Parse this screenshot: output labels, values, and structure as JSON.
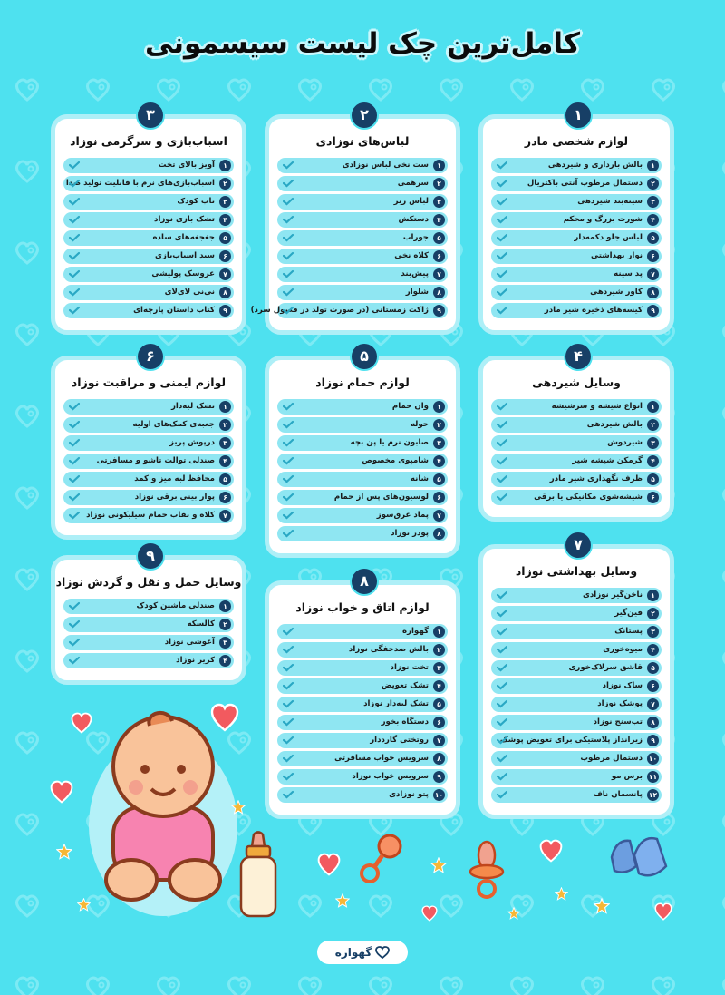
{
  "title": "کامل‌ترین چک لیست سیسمونی",
  "brand": {
    "name": "گهواره"
  },
  "colors": {
    "background": "#4ee1ef",
    "badge": "#173f66",
    "row": "#8fe6f2",
    "check": "#2aa8c4",
    "heart": "#f25a5f",
    "star": "#f6b736"
  },
  "cards": [
    {
      "num": "۱",
      "title": "لوازم شخصی مادر",
      "items": [
        {
          "n": "۱",
          "t": "بالش بارداری و شیردهی"
        },
        {
          "n": "۲",
          "t": "دستمال مرطوب آنتی باکتریال"
        },
        {
          "n": "۳",
          "t": "سینه‌بند شیردهی"
        },
        {
          "n": "۴",
          "t": "شورت بزرگ و محکم"
        },
        {
          "n": "۵",
          "t": "لباس جلو دکمه‌دار"
        },
        {
          "n": "۶",
          "t": "نوار بهداشتی"
        },
        {
          "n": "۷",
          "t": "پد سینه"
        },
        {
          "n": "۸",
          "t": "کاور شیردهی"
        },
        {
          "n": "۹",
          "t": "کیسه‌های ذخیره شیر مادر"
        }
      ]
    },
    {
      "num": "۲",
      "title": "لباس‌های نوزادی",
      "items": [
        {
          "n": "۱",
          "t": "ست نخی لباس نوزادی"
        },
        {
          "n": "۲",
          "t": "سرهمی"
        },
        {
          "n": "۳",
          "t": "لباس زیر"
        },
        {
          "n": "۴",
          "t": "دستکش"
        },
        {
          "n": "۵",
          "t": "جوراب"
        },
        {
          "n": "۶",
          "t": "کلاه نخی"
        },
        {
          "n": "۷",
          "t": "پیش‌بند"
        },
        {
          "n": "۸",
          "t": "شلوار"
        },
        {
          "n": "۹",
          "t": "ژاکت زمستانی (در صورت تولد در فصول سرد)"
        }
      ]
    },
    {
      "num": "۳",
      "title": "اسباب‌بازی و سرگرمی نوزاد",
      "items": [
        {
          "n": "۱",
          "t": "آویز بالای تخت"
        },
        {
          "n": "۲",
          "t": "اسباب‌بازی‌های نرم با قابلیت تولید صدا"
        },
        {
          "n": "۳",
          "t": "تاب کودک"
        },
        {
          "n": "۴",
          "t": "تشک بازی نوزاد"
        },
        {
          "n": "۵",
          "t": "جغجغه‌های ساده"
        },
        {
          "n": "۶",
          "t": "سبد اسباب‌بازی"
        },
        {
          "n": "۷",
          "t": "عروسک پولیشی"
        },
        {
          "n": "۸",
          "t": "نی‌نی لای‌لای"
        },
        {
          "n": "۹",
          "t": "کتاب داستان پارچه‌ای"
        }
      ]
    },
    {
      "num": "۴",
      "title": "وسایل شیردهی",
      "items": [
        {
          "n": "۱",
          "t": "انواع شیشه و سرشیشه"
        },
        {
          "n": "۲",
          "t": "بالش شیردهی"
        },
        {
          "n": "۳",
          "t": "شیردوش"
        },
        {
          "n": "۴",
          "t": "گرمکن شیشه شیر"
        },
        {
          "n": "۵",
          "t": "ظرف نگهداری شیر مادر"
        },
        {
          "n": "۶",
          "t": "شیشه‌شوی مکانیکی یا برقی"
        }
      ]
    },
    {
      "num": "۵",
      "title": "لوازم حمام نوزاد",
      "items": [
        {
          "n": "۱",
          "t": "وان حمام"
        },
        {
          "n": "۲",
          "t": "حوله"
        },
        {
          "n": "۳",
          "t": "صابون نرم یا پن بچه"
        },
        {
          "n": "۴",
          "t": "شامپوی مخصوص"
        },
        {
          "n": "۵",
          "t": "شانه"
        },
        {
          "n": "۶",
          "t": "لوسیون‌های پس از حمام"
        },
        {
          "n": "۷",
          "t": "پماد عرق‌سوز"
        },
        {
          "n": "۸",
          "t": "پودر نوزاد"
        }
      ]
    },
    {
      "num": "۶",
      "title": "لوازم ایمنی و مراقبت نوزاد",
      "items": [
        {
          "n": "۱",
          "t": "تشک لبه‌دار"
        },
        {
          "n": "۲",
          "t": "جعبه‌ی کمک‌های اولیه"
        },
        {
          "n": "۳",
          "t": "درپوش پریز"
        },
        {
          "n": "۴",
          "t": "صندلی توالت تاشو و مسافرتی"
        },
        {
          "n": "۵",
          "t": "محافظ لبه میز و کمد"
        },
        {
          "n": "۶",
          "t": "پوار بینی برقی نوزاد"
        },
        {
          "n": "۷",
          "t": "کلاه و نقاب حمام سیلیکونی نوزاد"
        }
      ]
    },
    {
      "num": "۷",
      "title": "وسایل بهداشتی نوزاد",
      "items": [
        {
          "n": "۱",
          "t": "ناخن‌گیر نوزادی"
        },
        {
          "n": "۲",
          "t": "فین‌گیر"
        },
        {
          "n": "۳",
          "t": "پستانک"
        },
        {
          "n": "۴",
          "t": "میوه‌خوری"
        },
        {
          "n": "۵",
          "t": "قاشق سرلاک‌خوری"
        },
        {
          "n": "۶",
          "t": "ساک نوزاد"
        },
        {
          "n": "۷",
          "t": "پوشک نوزاد"
        },
        {
          "n": "۸",
          "t": "تب‌سنج نوزاد"
        },
        {
          "n": "۹",
          "t": "زیرانداز پلاستیکی برای تعویض پوشک"
        },
        {
          "n": "۱۰",
          "t": "دستمال مرطوب"
        },
        {
          "n": "۱۱",
          "t": "برس مو"
        },
        {
          "n": "۱۲",
          "t": "پانسمان ناف"
        }
      ]
    },
    {
      "num": "۸",
      "title": "لوازم اتاق و خواب نوزاد",
      "items": [
        {
          "n": "۱",
          "t": "گهواره"
        },
        {
          "n": "۲",
          "t": "بالش ضدخفگی نوزاد"
        },
        {
          "n": "۳",
          "t": "تخت نوزاد"
        },
        {
          "n": "۴",
          "t": "تشک تعویض"
        },
        {
          "n": "۵",
          "t": "تشک لبه‌دار نوزاد"
        },
        {
          "n": "۶",
          "t": "دستگاه بخور"
        },
        {
          "n": "۷",
          "t": "روتختی گارددار"
        },
        {
          "n": "۸",
          "t": "سرویس خواب مسافرتی"
        },
        {
          "n": "۹",
          "t": "سرویس خواب نوزاد"
        },
        {
          "n": "۱۰",
          "t": "پتو نوزادی"
        }
      ]
    },
    {
      "num": "۹",
      "title": "وسایل حمل و نقل و گردش نوزاد",
      "items": [
        {
          "n": "۱",
          "t": "صندلی ماشین کودک"
        },
        {
          "n": "۲",
          "t": "کالسکه"
        },
        {
          "n": "۳",
          "t": "آغوشی نوزاد"
        },
        {
          "n": "۴",
          "t": "کریر نوزاد"
        }
      ]
    }
  ]
}
